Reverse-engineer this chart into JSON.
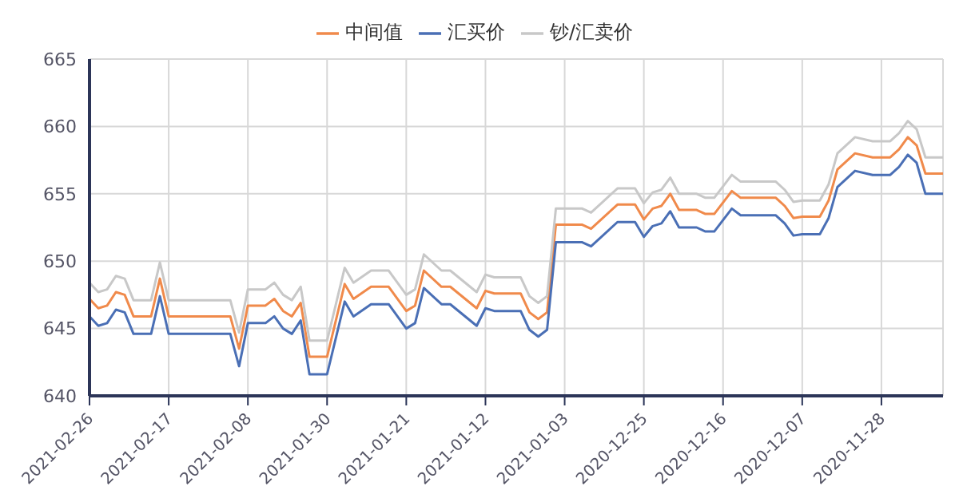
{
  "chart_data": {
    "type": "line",
    "legend": "top",
    "grid": true,
    "marker": "none",
    "line_style": "solid",
    "x": [
      "2021-02-26",
      "2021-02-25",
      "2021-02-24",
      "2021-02-23",
      "2021-02-22",
      "2021-02-21",
      "2021-02-19",
      "2021-02-18",
      "2021-02-17",
      "2021-02-10",
      "2021-02-09",
      "2021-02-08",
      "2021-02-06",
      "2021-02-05",
      "2021-02-04",
      "2021-02-03",
      "2021-02-02",
      "2021-02-01",
      "2021-01-30",
      "2021-01-28",
      "2021-01-27",
      "2021-01-25",
      "2021-01-23",
      "2021-01-21",
      "2021-01-20",
      "2021-01-19",
      "2021-01-17",
      "2021-01-16",
      "2021-01-13",
      "2021-01-12",
      "2021-01-11",
      "2021-01-08",
      "2021-01-07",
      "2021-01-06",
      "2021-01-05",
      "2021-01-04",
      "2021-01-01",
      "2020-12-31",
      "2020-12-28",
      "2020-12-26",
      "2020-12-25",
      "2020-12-24",
      "2020-12-23",
      "2020-12-22",
      "2020-12-21",
      "2020-12-19",
      "2020-12-18",
      "2020-12-17",
      "2020-12-15",
      "2020-12-14",
      "2020-12-10",
      "2020-12-09",
      "2020-12-08",
      "2020-12-07",
      "2020-12-05",
      "2020-12-04",
      "2020-12-03",
      "2020-12-01",
      "2020-11-29",
      "2020-11-27",
      "2020-11-26",
      "2020-11-25",
      "2020-11-24",
      "2020-11-23",
      "2020-11-21"
    ],
    "xlim": [
      "2021-02-26",
      "2020-11-21"
    ],
    "xticks": [
      "2021-02-26",
      "2021-02-17",
      "2021-02-08",
      "2021-01-30",
      "2021-01-21",
      "2021-01-12",
      "2021-01-03",
      "2020-12-25",
      "2020-12-16",
      "2020-12-07",
      "2020-11-28"
    ],
    "ylim": [
      640,
      665
    ],
    "yticks": [
      640,
      645,
      650,
      655,
      660,
      665
    ],
    "series": [
      {
        "name": "中间值",
        "color": "#f08a4b",
        "values": [
          647.2,
          646.5,
          646.7,
          647.7,
          647.5,
          645.9,
          645.9,
          648.7,
          645.9,
          645.9,
          643.5,
          646.7,
          646.7,
          647.2,
          646.3,
          645.9,
          646.9,
          642.9,
          642.9,
          648.3,
          647.2,
          648.1,
          648.1,
          646.3,
          646.7,
          649.3,
          648.1,
          648.1,
          646.5,
          647.8,
          647.6,
          647.6,
          646.2,
          645.7,
          646.2,
          652.7,
          652.7,
          652.4,
          654.2,
          654.2,
          653.1,
          653.9,
          654.1,
          655.0,
          653.8,
          653.8,
          653.5,
          653.5,
          655.2,
          654.7,
          654.7,
          654.1,
          653.2,
          653.3,
          653.3,
          654.5,
          656.8,
          658.0,
          657.7,
          657.7,
          658.3,
          659.2,
          658.6,
          656.5,
          656.5
        ]
      },
      {
        "name": "汇买价",
        "color": "#4a6fb5",
        "values": [
          645.9,
          645.2,
          645.4,
          646.4,
          646.2,
          644.6,
          644.6,
          647.4,
          644.6,
          644.6,
          642.2,
          645.4,
          645.4,
          645.9,
          645.0,
          644.6,
          645.6,
          641.6,
          641.6,
          647.0,
          645.9,
          646.8,
          646.8,
          645.0,
          645.4,
          648.0,
          646.8,
          646.8,
          645.2,
          646.5,
          646.3,
          646.3,
          644.9,
          644.4,
          644.9,
          651.4,
          651.4,
          651.1,
          652.9,
          652.9,
          651.8,
          652.6,
          652.8,
          653.7,
          652.5,
          652.5,
          652.2,
          652.2,
          653.9,
          653.4,
          653.4,
          652.8,
          651.9,
          652.0,
          652.0,
          653.2,
          655.5,
          656.7,
          656.4,
          656.4,
          657.0,
          657.9,
          657.3,
          655.0,
          655.0
        ]
      },
      {
        "name": "钞/汇卖价",
        "color": "#c8c8c8",
        "values": [
          648.4,
          647.7,
          647.9,
          648.9,
          648.7,
          647.1,
          647.1,
          649.9,
          647.1,
          647.1,
          644.7,
          647.9,
          647.9,
          648.4,
          647.5,
          647.1,
          648.1,
          644.1,
          644.1,
          649.5,
          648.4,
          649.3,
          649.3,
          647.5,
          647.9,
          650.5,
          649.3,
          649.3,
          647.7,
          649.0,
          648.8,
          648.8,
          647.4,
          646.9,
          647.4,
          653.9,
          653.9,
          653.6,
          655.4,
          655.4,
          654.3,
          655.1,
          655.3,
          656.2,
          655.0,
          655.0,
          654.7,
          654.7,
          656.4,
          655.9,
          655.9,
          655.3,
          654.4,
          654.5,
          654.5,
          655.7,
          658.0,
          659.2,
          658.9,
          658.9,
          659.5,
          660.4,
          659.8,
          657.7,
          657.7
        ]
      }
    ]
  }
}
